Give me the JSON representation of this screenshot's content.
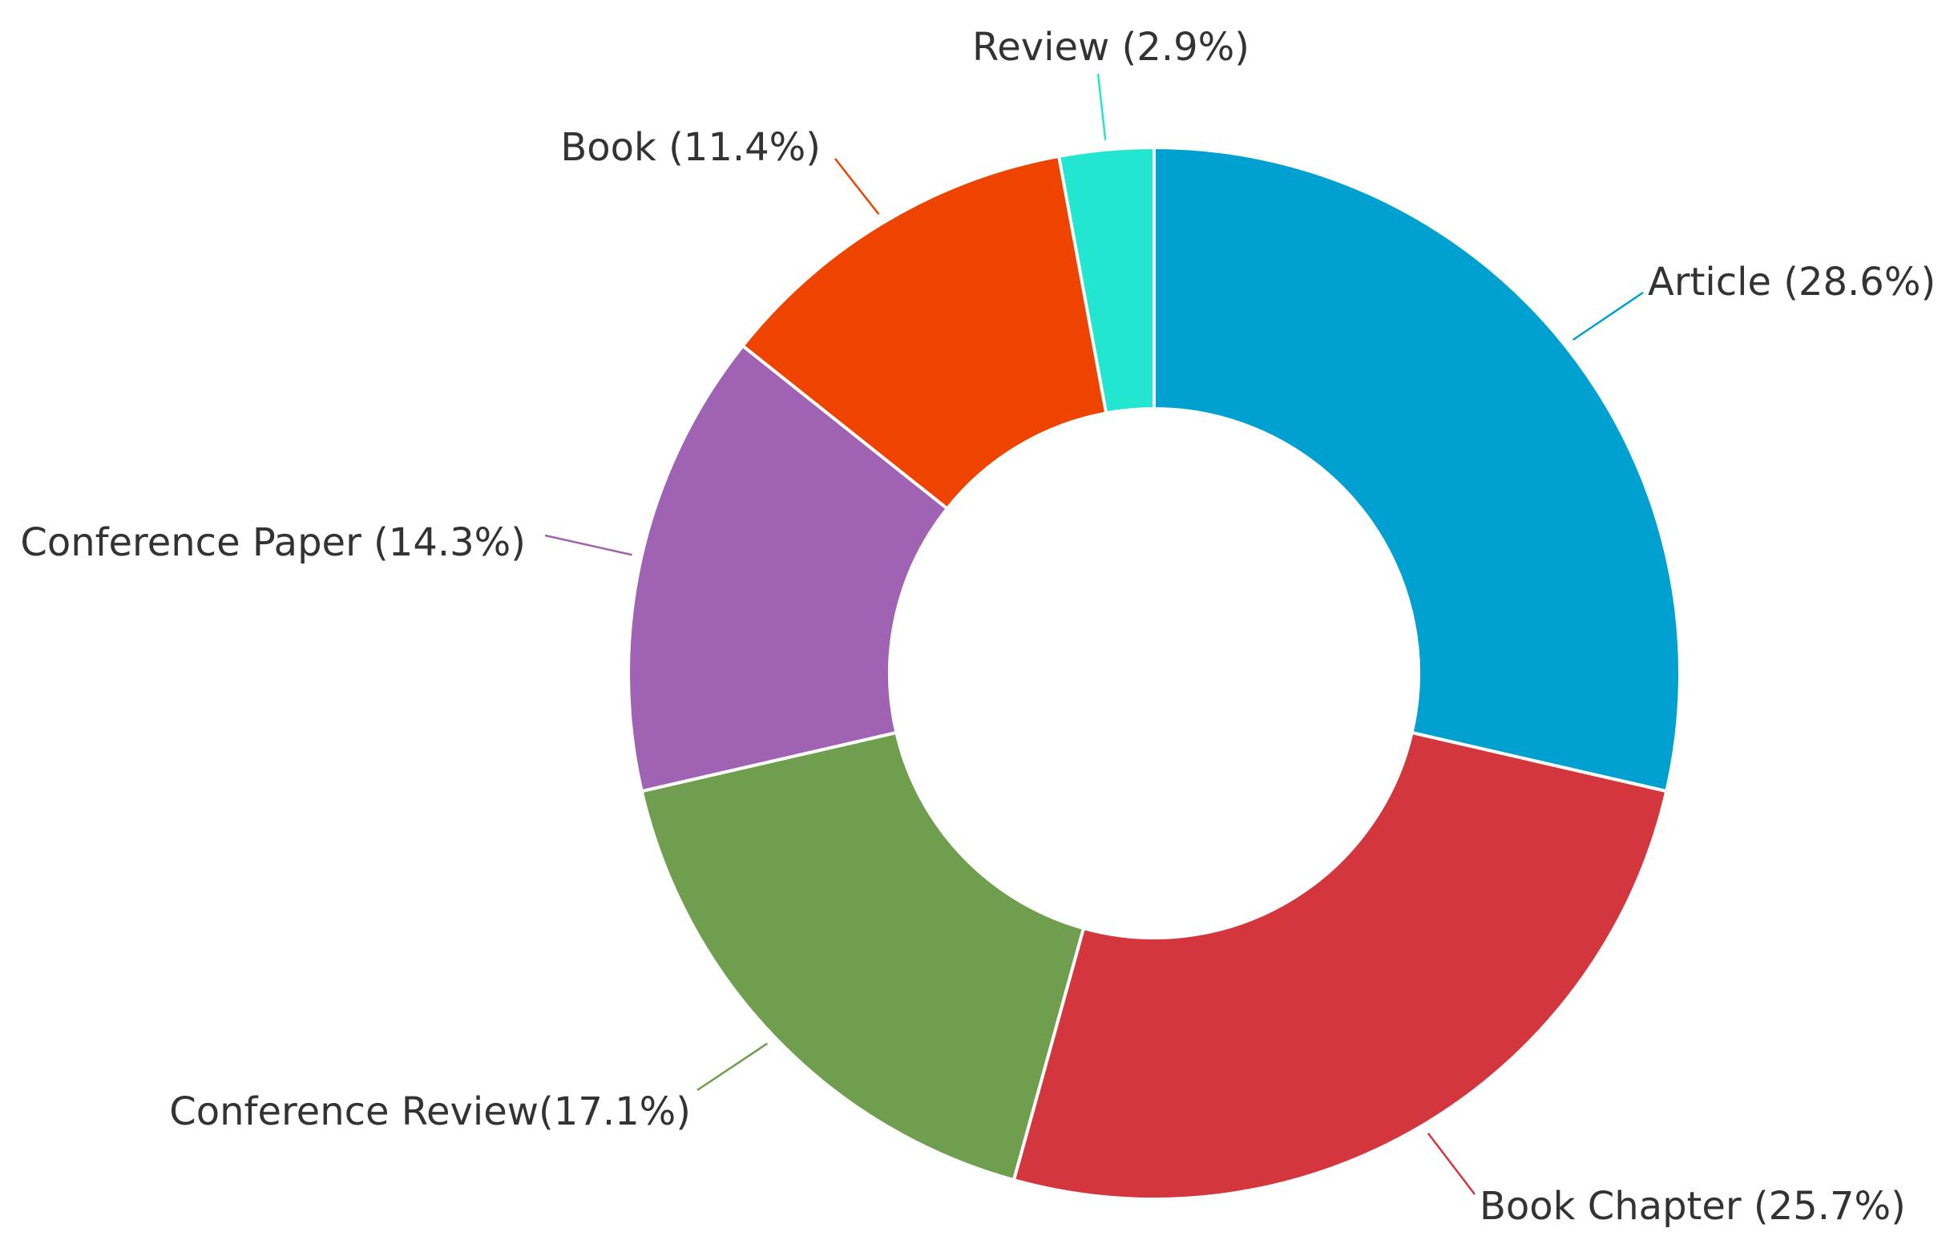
{
  "chart_data": {
    "type": "pie",
    "donut": true,
    "slices": [
      {
        "category": "Article",
        "value": 28.6,
        "label": "Article (28.6%)",
        "color": "#00A1D1"
      },
      {
        "category": "Book Chapter",
        "value": 25.7,
        "label": "Book Chapter (25.7%)",
        "color": "#D4363E"
      },
      {
        "category": "Conference Review",
        "value": 17.1,
        "label": "Conference Review(17.1%)",
        "color": "#6E9E4E"
      },
      {
        "category": "Conference Paper",
        "value": 14.3,
        "label": "Conference Paper (14.3%)",
        "color": "#A062B2"
      },
      {
        "category": "Book",
        "value": 11.4,
        "label": "Book (11.4%)",
        "color": "#EE4400"
      },
      {
        "category": "Review",
        "value": 2.9,
        "label": "Review (2.9%)",
        "color": "#22E6D0"
      }
    ]
  }
}
